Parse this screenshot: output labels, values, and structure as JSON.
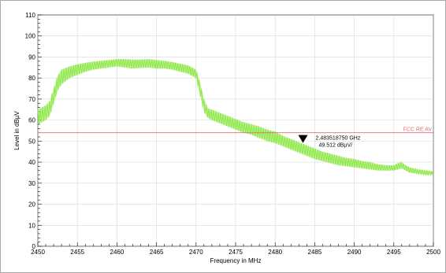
{
  "chart_data": {
    "type": "line",
    "title": "",
    "xlabel": "Frequency in MHz",
    "ylabel": "Level in dBµV",
    "xlim": [
      2450,
      2500
    ],
    "ylim": [
      0,
      110
    ],
    "x_ticks": [
      "2450",
      "2455",
      "2460",
      "2465",
      "2470",
      "2475",
      "2480",
      "2485",
      "2490",
      "2495",
      "2500"
    ],
    "y_ticks": [
      "0",
      "10",
      "20",
      "30",
      "40",
      "50",
      "60",
      "70",
      "80",
      "90",
      "100",
      "110"
    ],
    "grid": true,
    "series": [
      {
        "color": "#8fe84a",
        "x": [
          2450,
          2450.5,
          2451,
          2451.5,
          2452,
          2452.5,
          2453,
          2454,
          2455,
          2456,
          2457,
          2458,
          2459,
          2460,
          2461,
          2462,
          2463,
          2464,
          2465,
          2466,
          2467,
          2468,
          2469,
          2470,
          2470.5,
          2471,
          2471.5,
          2472,
          2473,
          2474,
          2475,
          2476,
          2477,
          2478,
          2479,
          2480,
          2481,
          2482,
          2483,
          2484,
          2485,
          2486,
          2487,
          2488,
          2489,
          2490,
          2491,
          2492,
          2493,
          2494,
          2495,
          2495.5,
          2496,
          2496.5,
          2497,
          2498,
          2499,
          2500
        ],
        "upper": [
          65,
          66,
          67,
          69,
          75,
          81,
          84,
          85.5,
          86.5,
          87.2,
          87.8,
          88.2,
          88.6,
          89,
          89,
          88.8,
          88.8,
          89,
          88.6,
          88.2,
          87.6,
          86.8,
          86,
          84,
          78,
          70,
          65.5,
          65,
          63.5,
          62,
          60.5,
          59,
          58,
          57,
          55.5,
          54.5,
          52.5,
          51,
          49.5,
          48,
          46.5,
          45,
          44,
          43,
          42,
          41.5,
          40.5,
          40,
          39,
          38.5,
          38.5,
          39.5,
          40,
          38.5,
          37.5,
          36.5,
          36,
          35.5
        ],
        "lower": [
          58,
          59,
          60,
          62,
          68,
          74,
          77,
          80,
          81.5,
          83,
          84,
          84.5,
          85,
          85.5,
          85,
          84.5,
          84.8,
          85,
          84.5,
          84.5,
          84,
          83,
          82,
          80,
          72,
          64,
          61,
          60,
          58.5,
          57,
          55.5,
          54,
          53,
          51.5,
          50,
          49,
          47.5,
          46,
          44.5,
          43,
          41.5,
          40.5,
          39.5,
          38.5,
          38,
          37.5,
          37,
          36.5,
          36,
          36,
          36,
          36.5,
          37,
          36,
          35,
          34.5,
          34,
          34
        ]
      }
    ],
    "limit_line": {
      "label": "FCC RE AV",
      "value": 54,
      "color": "#e07070"
    },
    "marker": {
      "x": 2483.51875,
      "y": 49.512,
      "freq_text": "2.483518750 GHz",
      "level_text": "49.512 dBµV/"
    }
  }
}
